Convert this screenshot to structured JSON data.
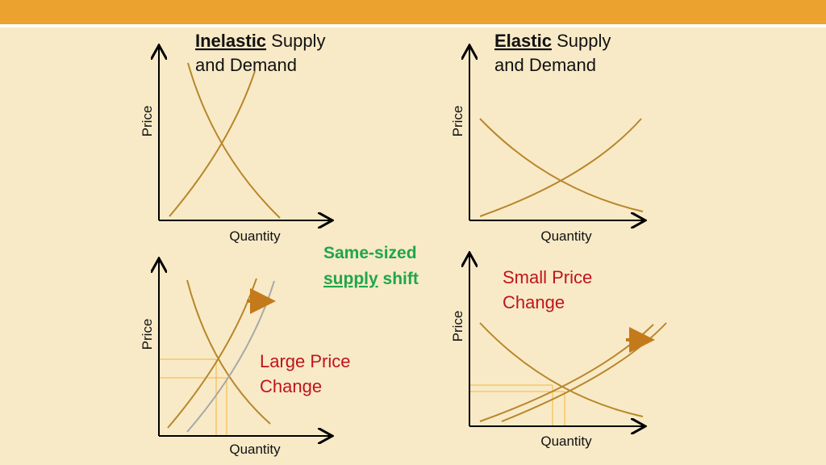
{
  "panels": [
    {
      "title_emphasis": "Inelastic",
      "title_rest": "Supply",
      "title_line2": "and Demand",
      "y_label": "Price",
      "x_label": "Quantity"
    },
    {
      "title_emphasis": "Elastic",
      "title_rest": "Supply",
      "title_line2": "and Demand",
      "y_label": "Price",
      "x_label": "Quantity"
    },
    {
      "y_label": "Price",
      "x_label": "Quantity",
      "annotation_line1": "Large Price",
      "annotation_line2": "Change"
    },
    {
      "y_label": "Price",
      "x_label": "Quantity",
      "annotation_line1": "Small Price",
      "annotation_line2": "Change"
    }
  ],
  "center_note": {
    "line1": "Same-sized",
    "emphasis": "supply",
    "rest": "shift"
  }
}
